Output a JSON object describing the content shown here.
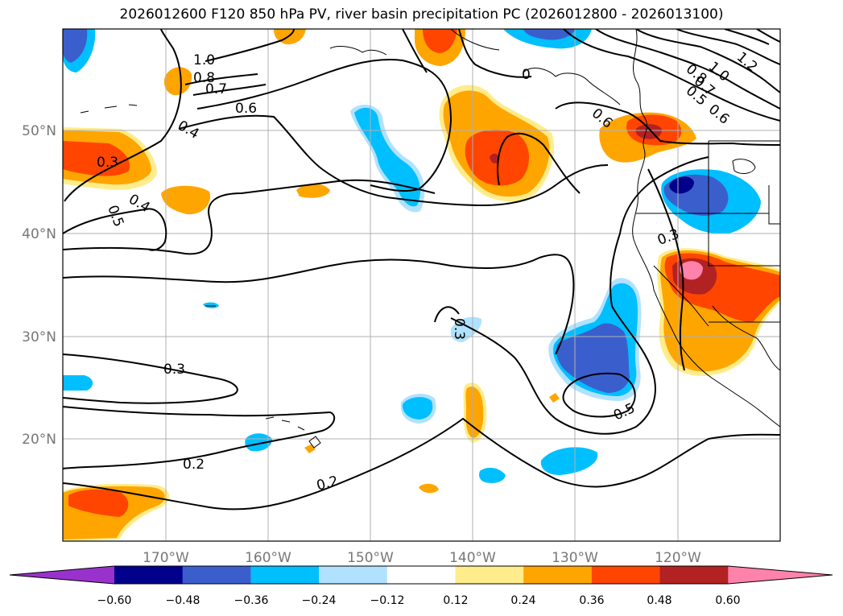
{
  "title": "2026012600 F120 850 hPa PV, river basin precipitation PC (2026012800 - 2026013100)",
  "map": {
    "lon_ticks": [
      "170°W",
      "160°W",
      "150°W",
      "140°W",
      "130°W",
      "120°W"
    ],
    "lat_ticks": [
      "50°N",
      "40°N",
      "30°N",
      "20°N"
    ],
    "contour_labels": [
      "1.0",
      "0.8",
      "0.7",
      "0.6",
      "0.4",
      "0.3",
      "0.4",
      "0.5",
      "0.3",
      "0.3",
      "0.2",
      "0.2",
      "0.5",
      "0.3",
      "1.2",
      "1.0",
      "0.8",
      "0.7",
      "0.5",
      "0.6",
      "0.6",
      "0"
    ]
  },
  "colorbar": {
    "ticks": [
      "−0.60",
      "−0.48",
      "−0.36",
      "−0.24",
      "−0.12",
      "0.12",
      "0.24",
      "0.36",
      "0.48",
      "0.60"
    ],
    "colors": [
      "#9932cc",
      "#00008b",
      "#3a5fcd",
      "#00bfff",
      "#b0e2ff",
      "#ffffff",
      "#ffec8b",
      "#ffa500",
      "#ff4500",
      "#b22222",
      "#ff82ab"
    ]
  }
}
